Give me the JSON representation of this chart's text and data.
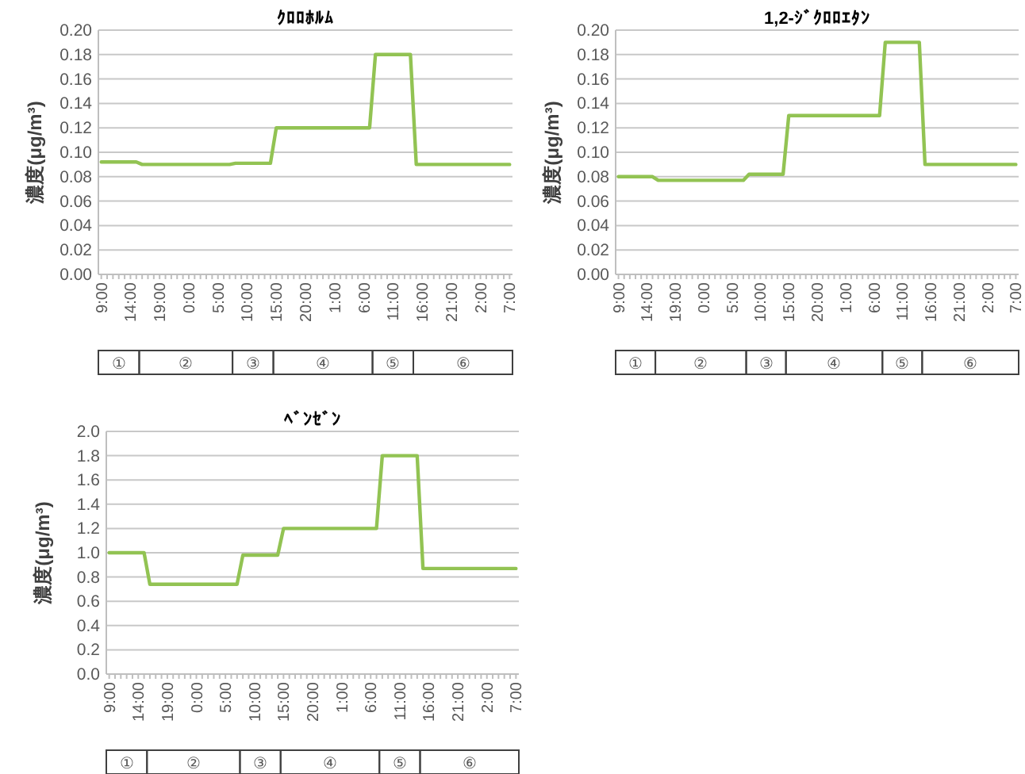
{
  "chart_data": [
    {
      "type": "line",
      "title": "ｸﾛﾛﾎﾙﾑ",
      "ylabel": "濃度(μg/m³)",
      "color": "#92c353",
      "grid": "y",
      "categories": [
        "9:00",
        null,
        null,
        null,
        null,
        "14:00",
        null,
        null,
        null,
        null,
        "19:00",
        null,
        null,
        null,
        null,
        "0:00",
        null,
        null,
        null,
        null,
        "5:00",
        null,
        null,
        null,
        null,
        "10:00",
        null,
        null,
        null,
        null,
        "15:00",
        null,
        null,
        null,
        null,
        "20:00",
        null,
        null,
        null,
        null,
        "1:00",
        null,
        null,
        null,
        null,
        "6:00",
        null,
        null,
        null,
        null,
        "11:00",
        null,
        null,
        null,
        null,
        "16:00",
        null,
        null,
        null,
        null,
        "21:00",
        null,
        null,
        null,
        null,
        "2:00",
        null,
        null,
        null,
        null,
        "7:00"
      ],
      "values": [
        0.092,
        0.092,
        0.092,
        0.092,
        0.092,
        0.092,
        0.092,
        0.09,
        0.09,
        0.09,
        0.09,
        0.09,
        0.09,
        0.09,
        0.09,
        0.09,
        0.09,
        0.09,
        0.09,
        0.09,
        0.09,
        0.09,
        0.09,
        0.091,
        0.091,
        0.091,
        0.091,
        0.091,
        0.091,
        0.091,
        0.12,
        0.12,
        0.12,
        0.12,
        0.12,
        0.12,
        0.12,
        0.12,
        0.12,
        0.12,
        0.12,
        0.12,
        0.12,
        0.12,
        0.12,
        0.12,
        0.12,
        0.18,
        0.18,
        0.18,
        0.18,
        0.18,
        0.18,
        0.18,
        0.09,
        0.09,
        0.09,
        0.09,
        0.09,
        0.09,
        0.09,
        0.09,
        0.09,
        0.09,
        0.09,
        0.09,
        0.09,
        0.09,
        0.09,
        0.09,
        0.09
      ],
      "ylim": [
        0,
        0.2
      ],
      "yticks": [
        {
          "value": 0,
          "label": "0.00"
        },
        {
          "value": 0.02,
          "label": "0.02"
        },
        {
          "value": 0.04,
          "label": "0.04"
        },
        {
          "value": 0.06,
          "label": "0.06"
        },
        {
          "value": 0.08,
          "label": "0.08"
        },
        {
          "value": 0.1,
          "label": "0.10"
        },
        {
          "value": 0.12,
          "label": "0.12"
        },
        {
          "value": 0.14,
          "label": "0.14"
        },
        {
          "value": 0.16,
          "label": "0.16"
        },
        {
          "value": 0.18,
          "label": "0.18"
        },
        {
          "value": 0.2,
          "label": "0.20"
        }
      ],
      "annotations": [
        "①",
        "②",
        "③",
        "④",
        "⑤",
        "⑥"
      ]
    },
    {
      "type": "line",
      "title": "1,2-ｼﾞｸﾛﾛｴﾀﾝ",
      "ylabel": "濃度(μg/m³)",
      "color": "#92c353",
      "grid": "y",
      "categories": [
        "9:00",
        null,
        null,
        null,
        null,
        "14:00",
        null,
        null,
        null,
        null,
        "19:00",
        null,
        null,
        null,
        null,
        "0:00",
        null,
        null,
        null,
        null,
        "5:00",
        null,
        null,
        null,
        null,
        "10:00",
        null,
        null,
        null,
        null,
        "15:00",
        null,
        null,
        null,
        null,
        "20:00",
        null,
        null,
        null,
        null,
        "1:00",
        null,
        null,
        null,
        null,
        "6:00",
        null,
        null,
        null,
        null,
        "11:00",
        null,
        null,
        null,
        null,
        "16:00",
        null,
        null,
        null,
        null,
        "21:00",
        null,
        null,
        null,
        null,
        "2:00",
        null,
        null,
        null,
        null,
        "7:00"
      ],
      "values": [
        0.08,
        0.08,
        0.08,
        0.08,
        0.08,
        0.08,
        0.08,
        0.077,
        0.077,
        0.077,
        0.077,
        0.077,
        0.077,
        0.077,
        0.077,
        0.077,
        0.077,
        0.077,
        0.077,
        0.077,
        0.077,
        0.077,
        0.077,
        0.082,
        0.082,
        0.082,
        0.082,
        0.082,
        0.082,
        0.082,
        0.13,
        0.13,
        0.13,
        0.13,
        0.13,
        0.13,
        0.13,
        0.13,
        0.13,
        0.13,
        0.13,
        0.13,
        0.13,
        0.13,
        0.13,
        0.13,
        0.13,
        0.19,
        0.19,
        0.19,
        0.19,
        0.19,
        0.19,
        0.19,
        0.09,
        0.09,
        0.09,
        0.09,
        0.09,
        0.09,
        0.09,
        0.09,
        0.09,
        0.09,
        0.09,
        0.09,
        0.09,
        0.09,
        0.09,
        0.09,
        0.09
      ],
      "ylim": [
        0,
        0.2
      ],
      "yticks": [
        {
          "value": 0,
          "label": "0.00"
        },
        {
          "value": 0.02,
          "label": "0.02"
        },
        {
          "value": 0.04,
          "label": "0.04"
        },
        {
          "value": 0.06,
          "label": "0.06"
        },
        {
          "value": 0.08,
          "label": "0.08"
        },
        {
          "value": 0.1,
          "label": "0.10"
        },
        {
          "value": 0.12,
          "label": "0.12"
        },
        {
          "value": 0.14,
          "label": "0.14"
        },
        {
          "value": 0.16,
          "label": "0.16"
        },
        {
          "value": 0.18,
          "label": "0.18"
        },
        {
          "value": 0.2,
          "label": "0.20"
        }
      ],
      "annotations": [
        "①",
        "②",
        "③",
        "④",
        "⑤",
        "⑥"
      ]
    },
    {
      "type": "line",
      "title": "ﾍﾞﾝｾﾞﾝ",
      "ylabel": "濃度(μg/m³)",
      "color": "#92c353",
      "grid": "y",
      "categories": [
        "9:00",
        null,
        null,
        null,
        null,
        "14:00",
        null,
        null,
        null,
        null,
        "19:00",
        null,
        null,
        null,
        null,
        "0:00",
        null,
        null,
        null,
        null,
        "5:00",
        null,
        null,
        null,
        null,
        "10:00",
        null,
        null,
        null,
        null,
        "15:00",
        null,
        null,
        null,
        null,
        "20:00",
        null,
        null,
        null,
        null,
        "1:00",
        null,
        null,
        null,
        null,
        "6:00",
        null,
        null,
        null,
        null,
        "11:00",
        null,
        null,
        null,
        null,
        "16:00",
        null,
        null,
        null,
        null,
        "21:00",
        null,
        null,
        null,
        null,
        "2:00",
        null,
        null,
        null,
        null,
        "7:00"
      ],
      "values": [
        1.0,
        1.0,
        1.0,
        1.0,
        1.0,
        1.0,
        1.0,
        0.74,
        0.74,
        0.74,
        0.74,
        0.74,
        0.74,
        0.74,
        0.74,
        0.74,
        0.74,
        0.74,
        0.74,
        0.74,
        0.74,
        0.74,
        0.74,
        0.98,
        0.98,
        0.98,
        0.98,
        0.98,
        0.98,
        0.98,
        1.2,
        1.2,
        1.2,
        1.2,
        1.2,
        1.2,
        1.2,
        1.2,
        1.2,
        1.2,
        1.2,
        1.2,
        1.2,
        1.2,
        1.2,
        1.2,
        1.2,
        1.8,
        1.8,
        1.8,
        1.8,
        1.8,
        1.8,
        1.8,
        0.87,
        0.87,
        0.87,
        0.87,
        0.87,
        0.87,
        0.87,
        0.87,
        0.87,
        0.87,
        0.87,
        0.87,
        0.87,
        0.87,
        0.87,
        0.87,
        0.87
      ],
      "ylim": [
        0,
        2
      ],
      "yticks": [
        {
          "value": 0,
          "label": "0.0"
        },
        0.2,
        0.4,
        0.6,
        0.8,
        {
          "value": 1,
          "label": "1.0"
        },
        1.2,
        1.4,
        1.6,
        1.8,
        {
          "value": 2,
          "label": "2.0"
        }
      ],
      "annotations": [
        "①",
        "②",
        "③",
        "④",
        "⑤",
        "⑥"
      ]
    }
  ]
}
